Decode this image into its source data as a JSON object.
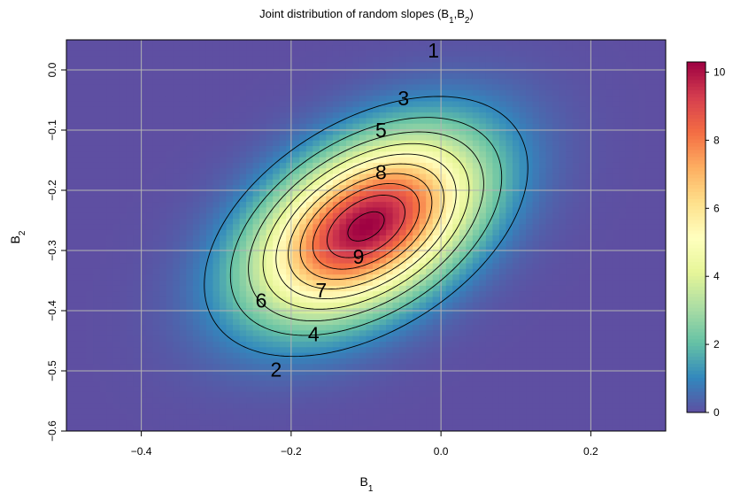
{
  "chart_data": {
    "type": "heatmap",
    "title_main": "Joint distribution of random slopes (B",
    "title_sub1": "1",
    "title_sep": ",B",
    "title_sub2": "2",
    "title_end": ")",
    "xlabel_main": "B",
    "xlabel_sub": "1",
    "ylabel_main": "B",
    "ylabel_sub": "2",
    "xlim": [
      -0.5,
      0.3
    ],
    "ylim": [
      -0.6,
      0.05
    ],
    "x_ticks": [
      {
        "value": -0.4,
        "label": "−0.4"
      },
      {
        "value": -0.2,
        "label": "−0.2"
      },
      {
        "value": 0.0,
        "label": "0.0"
      },
      {
        "value": 0.2,
        "label": "0.2"
      }
    ],
    "y_ticks": [
      {
        "value": 0.0,
        "label": "0.0"
      },
      {
        "value": -0.1,
        "label": "−0.1"
      },
      {
        "value": -0.2,
        "label": "−0.2"
      },
      {
        "value": -0.3,
        "label": "−0.3"
      },
      {
        "value": -0.4,
        "label": "−0.4"
      },
      {
        "value": -0.5,
        "label": "−0.5"
      },
      {
        "value": -0.6,
        "label": "−0.6"
      }
    ],
    "grid": true,
    "density": {
      "mean": [
        -0.1,
        -0.26
      ],
      "sd": [
        0.1,
        0.1
      ],
      "correlation": 0.45,
      "peak": 10.3
    },
    "contour_levels": [
      1,
      2,
      3,
      4,
      5,
      6,
      7,
      8,
      9,
      10
    ],
    "contour_labels": [
      {
        "text": "1",
        "x": -0.01,
        "y": 0.032
      },
      {
        "text": "2",
        "x": -0.22,
        "y": -0.498
      },
      {
        "text": "3",
        "x": -0.05,
        "y": -0.047
      },
      {
        "text": "4",
        "x": -0.17,
        "y": -0.439
      },
      {
        "text": "5",
        "x": -0.08,
        "y": -0.1
      },
      {
        "text": "6",
        "x": -0.24,
        "y": -0.383
      },
      {
        "text": "7",
        "x": -0.16,
        "y": -0.366
      },
      {
        "text": "8",
        "x": -0.08,
        "y": -0.17
      },
      {
        "text": "9",
        "x": -0.11,
        "y": -0.31
      }
    ],
    "colorbar": {
      "range": [
        0,
        10.3
      ],
      "ticks": [
        {
          "value": 0,
          "label": "0"
        },
        {
          "value": 2,
          "label": "2"
        },
        {
          "value": 4,
          "label": "4"
        },
        {
          "value": 6,
          "label": "6"
        },
        {
          "value": 8,
          "label": "8"
        },
        {
          "value": 10,
          "label": "10"
        }
      ],
      "colors": [
        "#5e4fa2",
        "#3288bd",
        "#66c2a5",
        "#abdda4",
        "#e6f598",
        "#ffffbf",
        "#fee08b",
        "#fdae61",
        "#f46d43",
        "#d53e4f",
        "#9e0142"
      ]
    },
    "colors": {
      "grid": "#b3b3b3",
      "contour": "#000000"
    }
  }
}
